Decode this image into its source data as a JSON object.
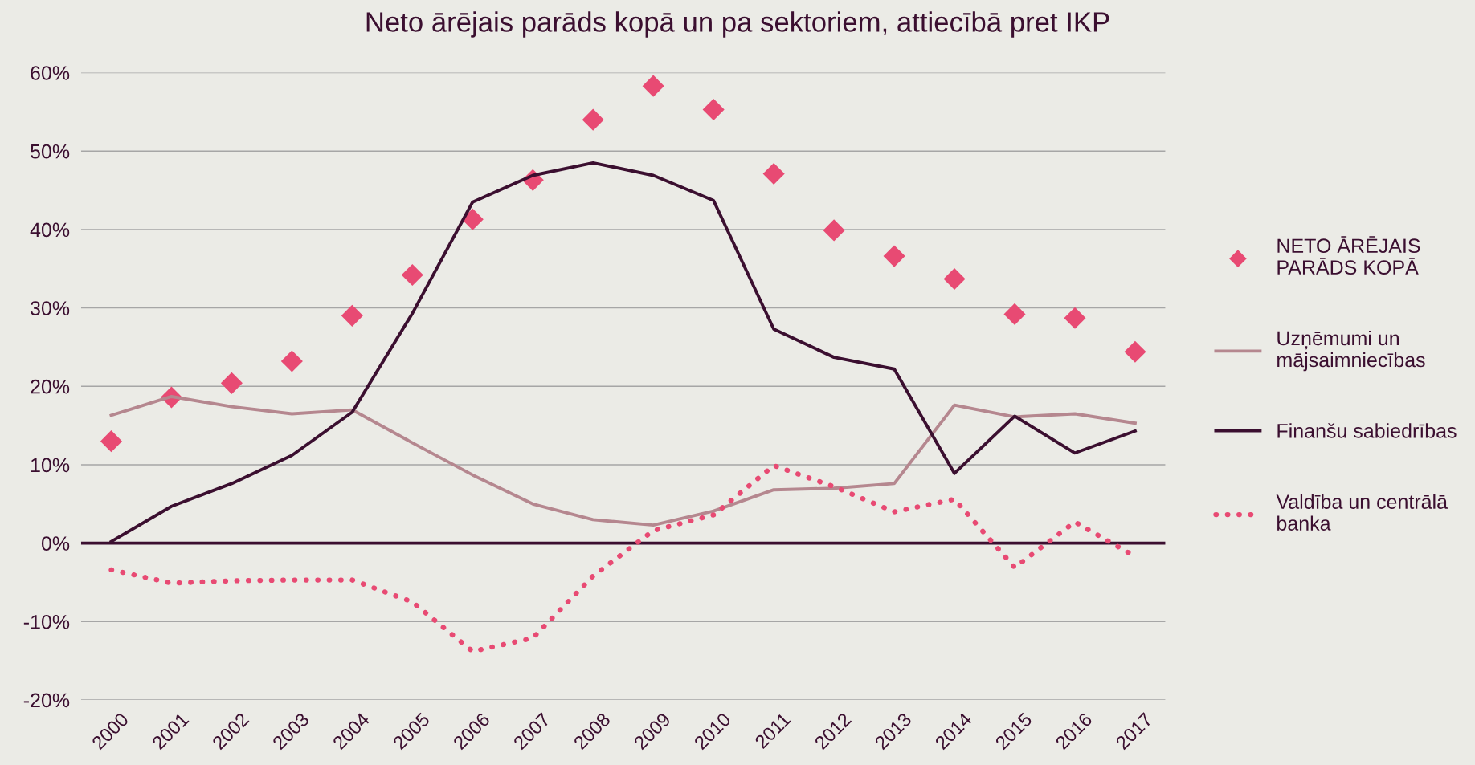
{
  "chart_data": {
    "type": "line",
    "title": "Neto ārējais parāds kopā un pa sektoriem, attiecībā pret IKP",
    "categories": [
      "2000",
      "2001",
      "2002",
      "2003",
      "2004",
      "2005",
      "2006",
      "2007",
      "2008",
      "2009",
      "2010",
      "2011",
      "2012",
      "2013",
      "2014",
      "2015",
      "2016",
      "2017"
    ],
    "series": [
      {
        "name": "NETO ĀRĒJAIS\nPARĀDS KOPĀ",
        "type": "scatter",
        "marker": "diamond",
        "color": "#e84a73",
        "values": [
          13.0,
          18.6,
          20.4,
          23.2,
          29.0,
          34.2,
          41.3,
          46.3,
          54.0,
          58.3,
          55.3,
          47.1,
          39.9,
          36.6,
          33.7,
          29.2,
          28.7,
          24.4
        ]
      },
      {
        "name": "Uzņēmumi un\nmājsaimniecības",
        "line_style": "solid",
        "color": "#b5878f",
        "values": [
          16.3,
          18.7,
          17.4,
          16.5,
          17.0,
          12.8,
          8.7,
          5.0,
          3.0,
          2.3,
          4.1,
          6.8,
          7.0,
          7.6,
          17.6,
          16.1,
          16.5,
          15.3
        ]
      },
      {
        "name": "Finanšu sabiedrības",
        "line_style": "solid",
        "color": "#3b0f30",
        "values": [
          0.2,
          4.7,
          7.6,
          11.2,
          16.7,
          29.3,
          43.5,
          46.9,
          48.5,
          46.9,
          43.7,
          27.3,
          23.7,
          22.2,
          8.9,
          16.2,
          11.5,
          14.3
        ]
      },
      {
        "name": "Valdība un centrālā\nbanka",
        "line_style": "dotted",
        "color": "#e84a73",
        "values": [
          -3.4,
          -5.1,
          -4.8,
          -4.7,
          -4.7,
          -7.5,
          -13.8,
          -12.1,
          -4.2,
          1.6,
          3.6,
          9.9,
          7.2,
          4.0,
          5.6,
          -3.1,
          2.7,
          -1.7
        ]
      }
    ],
    "ylim": [
      -20,
      60
    ],
    "yticks": [
      {
        "value": -20,
        "label": "-20%"
      },
      {
        "value": -10,
        "label": "-10%"
      },
      {
        "value": 0,
        "label": "0%"
      },
      {
        "value": 10,
        "label": "10%"
      },
      {
        "value": 20,
        "label": "20%"
      },
      {
        "value": 30,
        "label": "30%"
      },
      {
        "value": 40,
        "label": "40%"
      },
      {
        "value": 50,
        "label": "50%"
      },
      {
        "value": 60,
        "label": "60%"
      }
    ],
    "ref_lines": [
      {
        "axis": "y",
        "value": 0,
        "color": "#3b0f30",
        "line_style": "solid"
      }
    ],
    "grid": "y",
    "legend": "right"
  }
}
